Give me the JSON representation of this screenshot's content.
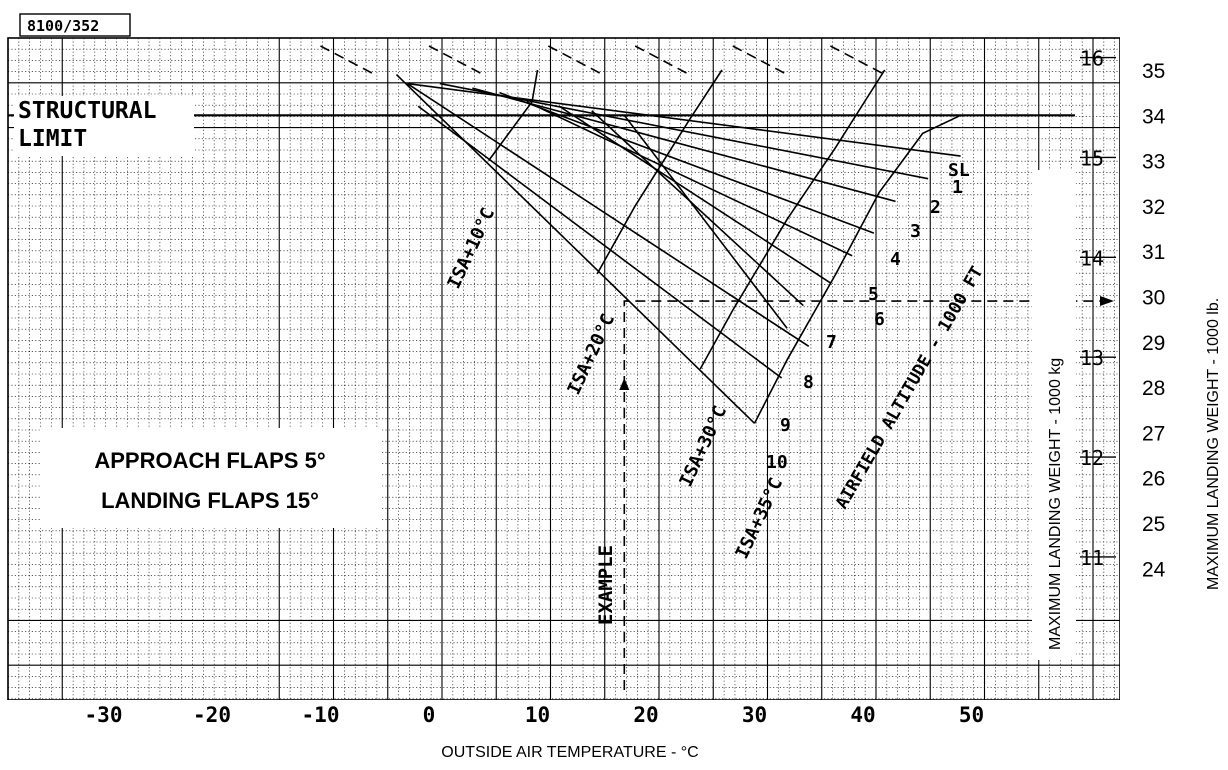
{
  "figure_ref": "8100/352",
  "structural_limit": {
    "line1": "STRUCTURAL",
    "line2": "LIMIT",
    "weight_klb": 34
  },
  "panel": {
    "line1": "APPROACH FLAPS 5°",
    "line2": "LANDING FLAPS 15°"
  },
  "example_label": "EXAMPLE",
  "airfield_altitude_label": "AIRFIELD ALTITUDE - 1000 FT",
  "isa_labels": [
    "ISA+10°C",
    "ISA+20°C",
    "ISA+30°C",
    "ISA+35°C"
  ],
  "altitude_labels": [
    "SL",
    "1",
    "2",
    "3",
    "4",
    "5",
    "6",
    "7",
    "8",
    "9",
    "10"
  ],
  "chart_data": {
    "type": "line",
    "xlabel": "OUTSIDE AIR TEMPERATURE - °C",
    "ylabel": "MAXIMUM LANDING WEIGHT - 1000 lb.",
    "y2label": "MAXIMUM LANDING WEIGHT - 1000 kg",
    "x_ticks": [
      "-30",
      "-20",
      "-10",
      "0",
      "10",
      "20",
      "30",
      "40",
      "50"
    ],
    "x_tick_values": [
      -30,
      -20,
      -10,
      0,
      10,
      20,
      30,
      40,
      50
    ],
    "y_ticks_lb": [
      "24",
      "25",
      "26",
      "27",
      "28",
      "29",
      "30",
      "31",
      "32",
      "33",
      "34",
      "35"
    ],
    "y_tick_values_lb": [
      24,
      25,
      26,
      27,
      28,
      29,
      30,
      31,
      32,
      33,
      34,
      35
    ],
    "y_ticks_kg": [
      "11",
      "12",
      "13",
      "14",
      "15",
      "16"
    ],
    "y_tick_values_kg": [
      11,
      12,
      13,
      14,
      15,
      16
    ],
    "xlim": [
      -38,
      60
    ],
    "ylim": [
      20.7,
      36.3
    ],
    "grid": "on",
    "altitude_lines": [
      {
        "label": "SL",
        "points": [
          [
            -2,
            34.7
          ],
          [
            49,
            33.1
          ]
        ]
      },
      {
        "label": "1",
        "points": [
          [
            1,
            34.7
          ],
          [
            46,
            32.6
          ]
        ]
      },
      {
        "label": "2",
        "points": [
          [
            4,
            34.6
          ],
          [
            43,
            32.1
          ]
        ]
      },
      {
        "label": "3",
        "points": [
          [
            6.5,
            34.5
          ],
          [
            41,
            31.4
          ]
        ]
      },
      {
        "label": "4",
        "points": [
          [
            9,
            34.3
          ],
          [
            39,
            30.9
          ]
        ]
      },
      {
        "label": "5",
        "points": [
          [
            12,
            34.2
          ],
          [
            37,
            30.3
          ]
        ]
      },
      {
        "label": "6",
        "points": [
          [
            15,
            34.1
          ],
          [
            34.5,
            29.8
          ]
        ]
      },
      {
        "label": "7",
        "points": [
          [
            18,
            34.0
          ],
          [
            33,
            29.3
          ]
        ]
      },
      {
        "label": "8",
        "points": [
          [
            -2,
            34.7
          ],
          [
            35,
            28.9
          ]
        ]
      },
      {
        "label": "9",
        "points": [
          [
            -1,
            34.2
          ],
          [
            32.5,
            28.2
          ]
        ]
      },
      {
        "label": "10",
        "points": [
          [
            -3,
            34.9
          ],
          [
            30,
            27.2
          ]
        ]
      }
    ],
    "isa_lines": [
      {
        "label": "ISA+10°C",
        "points": [
          [
            5.5,
            33.0
          ],
          [
            9.5,
            34.3
          ],
          [
            10,
            35.0
          ]
        ]
      },
      {
        "label": "ISA+20°C",
        "points": [
          [
            15.5,
            30.5
          ],
          [
            19,
            32.0
          ],
          [
            24,
            33.9
          ],
          [
            27,
            35.0
          ]
        ]
      },
      {
        "label": "ISA+30°C",
        "points": [
          [
            25,
            28.4
          ],
          [
            28,
            29.7
          ],
          [
            33,
            31.7
          ],
          [
            37.5,
            33.3
          ],
          [
            42,
            35.0
          ]
        ]
      },
      {
        "label": "ISA+35°C",
        "points": [
          [
            30,
            27.2
          ],
          [
            33,
            28.6
          ],
          [
            37.5,
            30.5
          ],
          [
            41.5,
            32.3
          ],
          [
            45.5,
            33.6
          ],
          [
            49,
            34.0
          ]
        ]
      }
    ],
    "example": {
      "oat": 18,
      "weight_klb": 29.9
    }
  }
}
